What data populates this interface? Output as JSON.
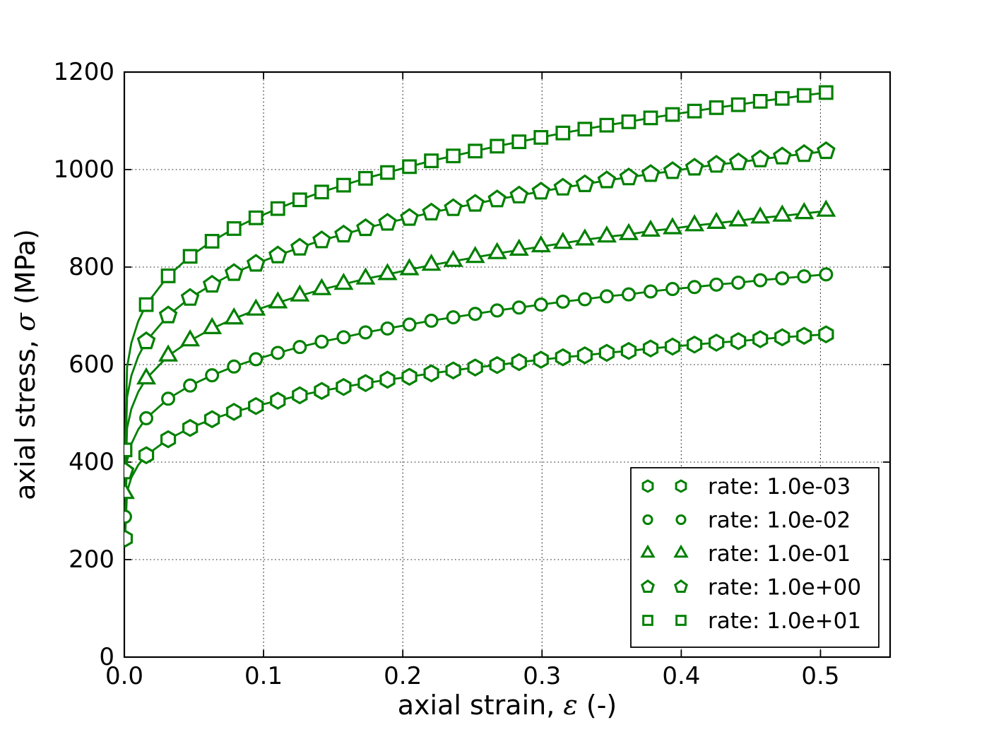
{
  "figure": {
    "background": "#ffffff",
    "frame_color": "#000000"
  },
  "chart_data": {
    "type": "line",
    "title": "",
    "xlabel": "axial strain, ε (-)",
    "ylabel": "axial stress, σ (MPa)",
    "xlim": [
      0,
      0.55
    ],
    "ylim": [
      0,
      1200
    ],
    "xticks": [
      0.0,
      0.1,
      0.2,
      0.3,
      0.4,
      0.5
    ],
    "xtick_labels": [
      "0.0",
      "0.1",
      "0.2",
      "0.3",
      "0.4",
      "0.5"
    ],
    "yticks": [
      0,
      200,
      400,
      600,
      800,
      1000,
      1200
    ],
    "ytick_labels": [
      "0",
      "200",
      "400",
      "600",
      "800",
      "1000",
      "1200"
    ],
    "grid": {
      "visible": true,
      "style": "dotted",
      "color": "#000000"
    },
    "series_color": "#008000",
    "marker_face_color": "#ffffff",
    "legend": {
      "position": "lower right"
    },
    "strains": [
      0.0005,
      0.002,
      0.005,
      0.01,
      0.01575,
      0.0315,
      0.04725,
      0.063,
      0.07875,
      0.0945,
      0.11025,
      0.126,
      0.14175,
      0.1575,
      0.17325,
      0.189,
      0.20475,
      0.2205,
      0.23625,
      0.252,
      0.26775,
      0.2835,
      0.29925,
      0.315,
      0.33075,
      0.3465,
      0.36225,
      0.378,
      0.39375,
      0.4095,
      0.42525,
      0.441,
      0.45675,
      0.4725,
      0.48825,
      0.504
    ],
    "marker_indices": [
      0,
      4,
      5,
      6,
      7,
      8,
      9,
      10,
      11,
      12,
      13,
      14,
      15,
      16,
      17,
      18,
      19,
      20,
      21,
      22,
      23,
      24,
      25,
      26,
      27,
      28,
      29,
      30,
      31,
      32,
      33,
      34,
      35
    ],
    "series": [
      {
        "label": "rate: 1.0e-03",
        "marker": "hexagon",
        "values": [
          243,
          340,
          368,
          394,
          414,
          447,
          470,
          488,
          503,
          515,
          526,
          537,
          546,
          554,
          562,
          569,
          575,
          582,
          588,
          594,
          599,
          605,
          610,
          615,
          619,
          624,
          628,
          633,
          637,
          641,
          645,
          648,
          652,
          656,
          659,
          662
        ]
      },
      {
        "label": "rate: 1.0e-02",
        "marker": "circle",
        "values": [
          288,
          403,
          437,
          467,
          490,
          530,
          557,
          578,
          596,
          611,
          624,
          636,
          647,
          656,
          666,
          674,
          682,
          690,
          697,
          704,
          711,
          717,
          723,
          729,
          734,
          740,
          744,
          750,
          755,
          759,
          764,
          768,
          773,
          777,
          781,
          785
        ]
      },
      {
        "label": "rate: 1.0e-01",
        "marker": "triangle",
        "values": [
          336,
          470,
          509,
          544,
          571,
          618,
          649,
          674,
          694,
          712,
          727,
          741,
          754,
          765,
          776,
          785,
          795,
          804,
          812,
          820,
          828,
          835,
          842,
          849,
          856,
          862,
          867,
          874,
          879,
          885,
          890,
          895,
          901,
          905,
          910,
          915
        ]
      },
      {
        "label": "rate: 1.0e+00",
        "marker": "pentagon",
        "values": [
          381,
          533,
          577,
          617,
          648,
          701,
          737,
          764,
          788,
          807,
          824,
          840,
          855,
          867,
          880,
          891,
          901,
          912,
          921,
          930,
          939,
          947,
          955,
          963,
          970,
          978,
          984,
          991,
          997,
          1004,
          1010,
          1015,
          1021,
          1027,
          1032,
          1038
        ]
      },
      {
        "label": "rate: 1.0e+01",
        "marker": "square",
        "values": [
          425,
          595,
          644,
          689,
          723,
          782,
          822,
          853,
          879,
          901,
          920,
          938,
          954,
          968,
          982,
          994,
          1006,
          1018,
          1028,
          1038,
          1048,
          1057,
          1066,
          1075,
          1083,
          1091,
          1098,
          1106,
          1113,
          1120,
          1127,
          1133,
          1140,
          1146,
          1152,
          1158
        ]
      }
    ]
  }
}
